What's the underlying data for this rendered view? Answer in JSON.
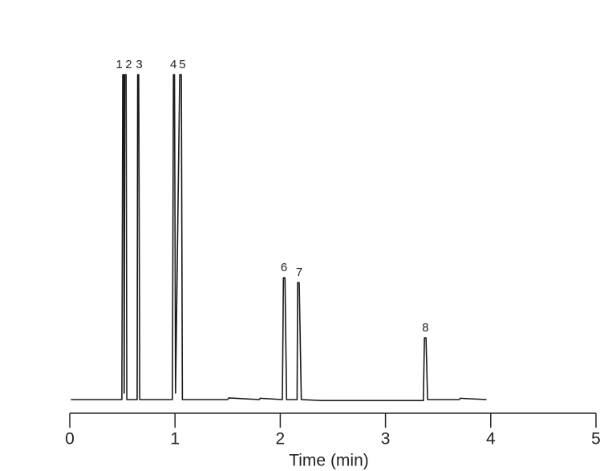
{
  "chart_data": {
    "type": "line",
    "xlabel": "Time (min)",
    "xlim": [
      0,
      5
    ],
    "xticks": [
      0,
      1,
      2,
      3,
      4,
      5
    ],
    "ylim": [
      0,
      100
    ],
    "color": "#1a1a1a",
    "series": [
      {
        "x": [
          0.01,
          0.495,
          0.503,
          0.512,
          0.517,
          0.522,
          0.535,
          0.542,
          0.64,
          0.645,
          0.655,
          0.665,
          0.975,
          0.985,
          0.995,
          1.005,
          1.045,
          1.06,
          1.07,
          1.5,
          1.51,
          1.8,
          1.81,
          2.02,
          2.03,
          2.045,
          2.06,
          2.16,
          2.165,
          2.18,
          2.2,
          2.4,
          3.36,
          3.37,
          3.385,
          3.4,
          3.7,
          3.71,
          3.96
        ],
        "values": [
          0,
          0,
          100,
          100,
          2,
          100,
          100,
          0,
          0,
          100,
          100,
          0,
          0,
          100,
          100,
          2,
          100,
          100,
          0,
          0,
          0.5,
          0,
          0.4,
          0,
          37.5,
          37.5,
          0,
          0,
          36,
          36,
          0,
          -0.3,
          -0.3,
          19,
          19,
          0,
          0,
          0.4,
          0
        ]
      }
    ],
    "annotations": [
      {
        "text": "1",
        "x": 0.47,
        "y": 100
      },
      {
        "text": "2",
        "x": 0.56,
        "y": 100
      },
      {
        "text": "3",
        "x": 0.66,
        "y": 100
      },
      {
        "text": "4",
        "x": 0.985,
        "y": 100
      },
      {
        "text": "5",
        "x": 1.07,
        "y": 100
      },
      {
        "text": "6",
        "x": 2.035,
        "y": 37.5
      },
      {
        "text": "7",
        "x": 2.18,
        "y": 36
      },
      {
        "text": "8",
        "x": 3.38,
        "y": 19
      }
    ]
  }
}
